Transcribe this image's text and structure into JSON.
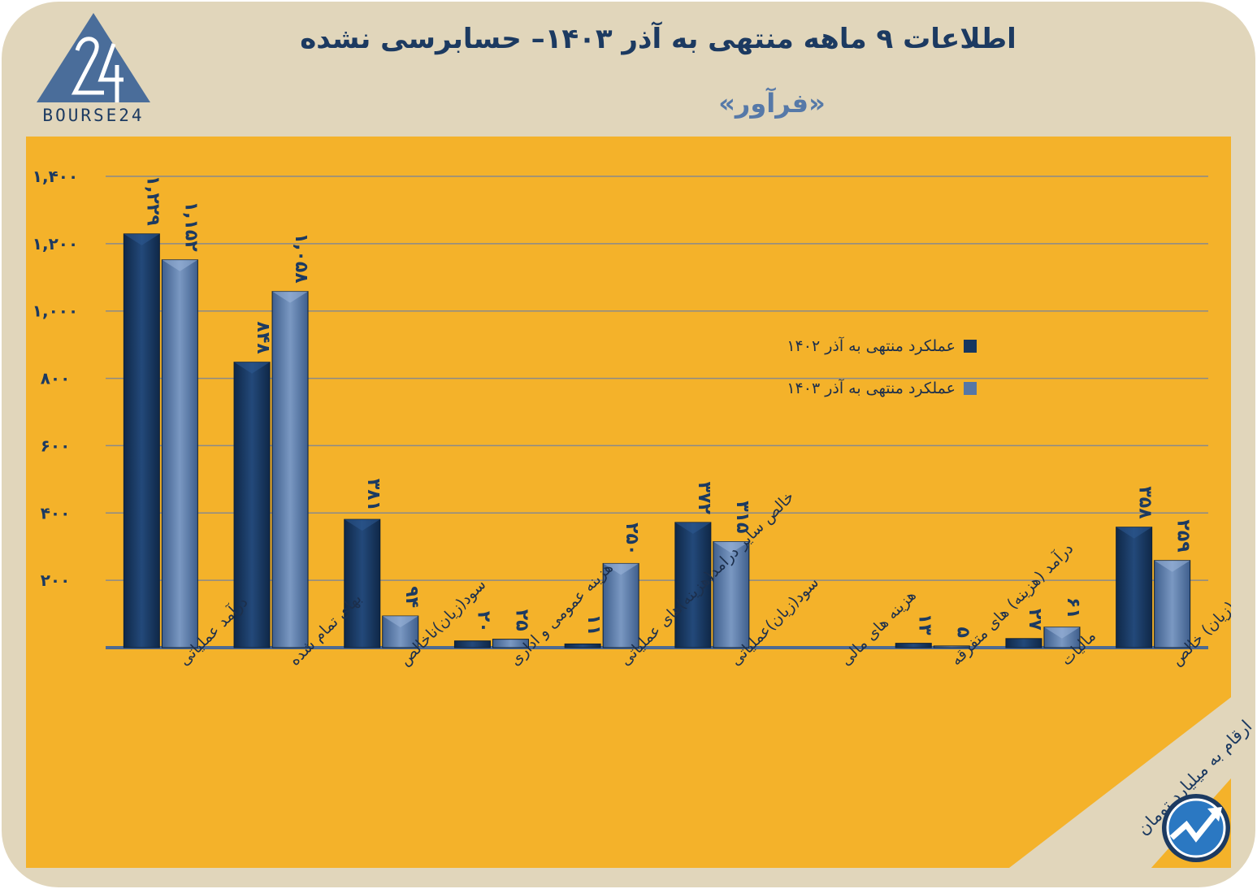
{
  "header": {
    "title": "اطلاعات ۹ ماهه منتهی به آذر ۱۴۰۳– حسابرسی نشده",
    "subtitle": "«فرآور»",
    "logo_text": "BOURSE24"
  },
  "footer": {
    "units_note": "ارقام به میلیارد تومان"
  },
  "colors": {
    "frame": "#e1d6bb",
    "panel": "#f4b22a",
    "dark_navy": "#1c3a61",
    "series_1402": "#163760",
    "series_1403": "#5677a6",
    "grid": "#8a8a8a"
  },
  "chart_data": {
    "type": "bar",
    "categories": [
      "درآمد عملیاتی",
      "بهای تمام شده",
      "سود(زیان)ناخالص",
      "هزینه عمومی و اداری",
      "خالص سایر درامد(هزینه)های عملیاتی",
      "سود(زیان)عملیاتی",
      "هزینه های مالی",
      "درآمد (هزینه) های متفرقه",
      "مالیات",
      "سود(زیان) خالص"
    ],
    "series": [
      {
        "name": "عملکرد منتهی به آذر ۱۴۰۲",
        "values": [
          1229,
          848,
          381,
          20,
          11,
          372,
          null,
          13,
          27,
          358
        ],
        "labels": [
          "۱,۲۲۹",
          "۸۴۸",
          "۳۸۱",
          "۲۰",
          "۱۱",
          "۳۷۲",
          "",
          "۱۳",
          "۲۷",
          "۳۵۸"
        ]
      },
      {
        "name": "عملکرد منتهی به آذر ۱۴۰۳",
        "values": [
          1152,
          1058,
          94,
          25,
          250,
          315,
          null,
          5,
          61,
          259
        ],
        "labels": [
          "۱,۱۵۲",
          "۱,۰۵۸",
          "۹۴",
          "۲۵",
          "۲۵۰",
          "۳۱۵",
          "",
          "۵",
          "۶۱",
          "۲۵۹"
        ]
      }
    ],
    "yticks": [
      200,
      400,
      600,
      800,
      1000,
      1200,
      1400
    ],
    "ytick_labels": [
      "۲۰۰",
      "۴۰۰",
      "۶۰۰",
      "۸۰۰",
      "۱,۰۰۰",
      "۱,۲۰۰",
      "۱,۴۰۰"
    ],
    "ylim": [
      0,
      1400
    ],
    "grid": true,
    "legend_position": "top-right"
  }
}
